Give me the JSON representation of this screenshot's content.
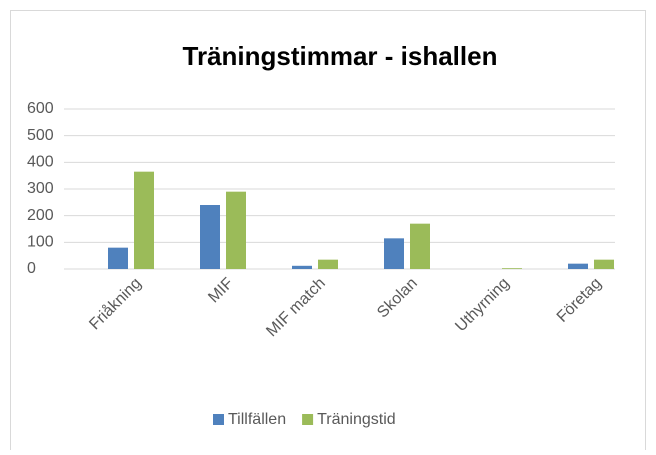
{
  "chart_data": {
    "type": "bar",
    "title": "Träningstimmar - ishallen",
    "categories": [
      "Friåkning",
      "MIF",
      "MIF match",
      "Skolan",
      "Uthyrning",
      "Företag"
    ],
    "series": [
      {
        "name": "Tillfällen",
        "color": "#4f81bd",
        "values": [
          80,
          240,
          12,
          115,
          0,
          20
        ]
      },
      {
        "name": "Träningstid",
        "color": "#9bbb59",
        "values": [
          365,
          290,
          35,
          170,
          3,
          35
        ]
      }
    ],
    "ylim": [
      0,
      600
    ],
    "yticks": [
      0,
      100,
      200,
      300,
      400,
      500,
      600
    ],
    "grid": true,
    "legend": "bottom"
  }
}
